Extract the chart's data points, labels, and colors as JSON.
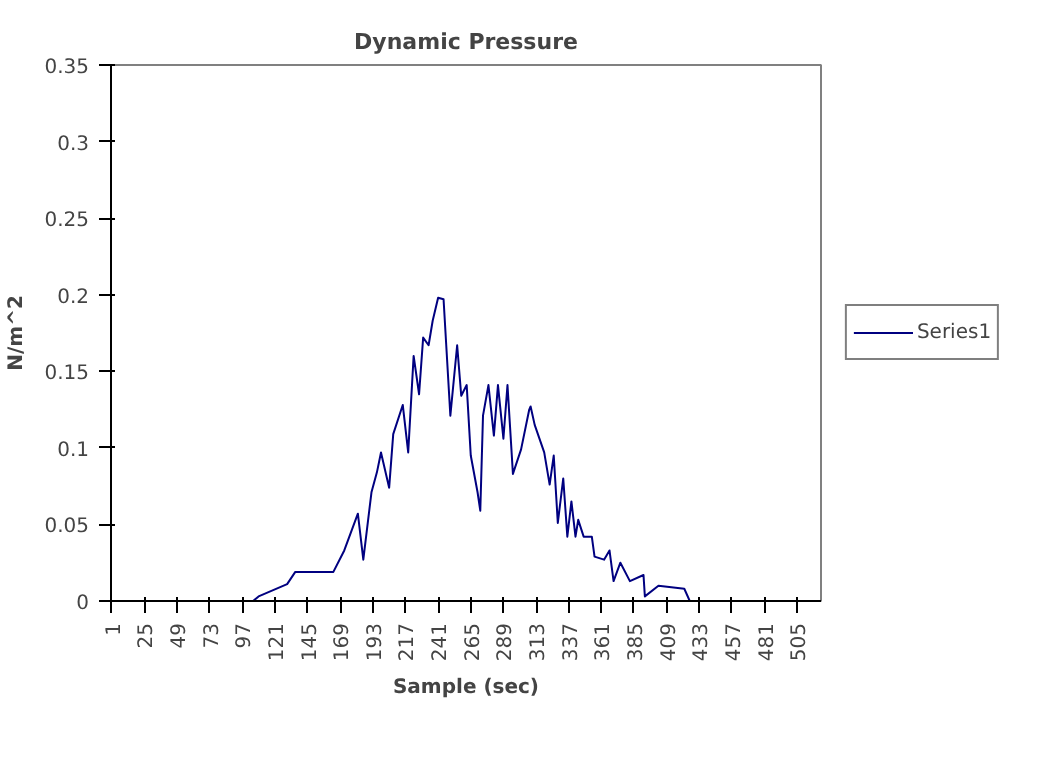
{
  "chart_data": {
    "type": "line",
    "title": "Dynamic Pressure",
    "xlabel": "Sample (sec)",
    "ylabel": "N/m^2",
    "xlim": [
      0.5,
      522.5
    ],
    "xticks": [
      1,
      25,
      49,
      73,
      97,
      121,
      145,
      169,
      193,
      217,
      241,
      265,
      289,
      313,
      337,
      361,
      385,
      409,
      433,
      457,
      481,
      505
    ],
    "ylim": [
      0,
      0.35
    ],
    "yticks": [
      0,
      0.05,
      0.1,
      0.15,
      0.2,
      0.25,
      0.3,
      0.35
    ],
    "grid": false,
    "legend": "right",
    "marker": "none",
    "line_style": "solid",
    "series": [
      {
        "name": "Series1",
        "color": "#000080",
        "x": [
          1,
          50,
          100,
          105,
          109,
          130,
          136,
          164,
          172,
          182,
          186,
          192,
          196,
          199,
          205,
          208,
          215,
          219,
          223,
          227,
          230,
          234,
          237,
          241,
          245,
          250,
          255,
          258,
          262,
          265,
          270,
          272,
          274,
          278,
          282,
          285,
          289,
          292,
          296,
          302,
          308,
          309,
          312,
          319,
          323,
          326,
          329,
          333,
          336,
          339,
          342,
          344,
          348,
          354,
          356,
          363,
          367,
          370,
          375,
          382,
          392,
          393,
          403,
          422,
          426,
          470,
          522
        ],
        "values": [
          0,
          0,
          0,
          0,
          0.003,
          0.011,
          0.019,
          0.019,
          0.033,
          0.057,
          0.027,
          0.071,
          0.084,
          0.097,
          0.074,
          0.109,
          0.128,
          0.097,
          0.16,
          0.135,
          0.172,
          0.167,
          0.183,
          0.198,
          0.197,
          0.121,
          0.167,
          0.134,
          0.141,
          0.095,
          0.071,
          0.059,
          0.121,
          0.141,
          0.108,
          0.141,
          0.106,
          0.141,
          0.083,
          0.099,
          0.125,
          0.127,
          0.115,
          0.097,
          0.076,
          0.095,
          0.051,
          0.08,
          0.042,
          0.065,
          0.042,
          0.053,
          0.042,
          0.042,
          0.029,
          0.027,
          0.033,
          0.013,
          0.025,
          0.013,
          0.017,
          0.003,
          0.01,
          0.008,
          0,
          0,
          0
        ]
      }
    ]
  }
}
